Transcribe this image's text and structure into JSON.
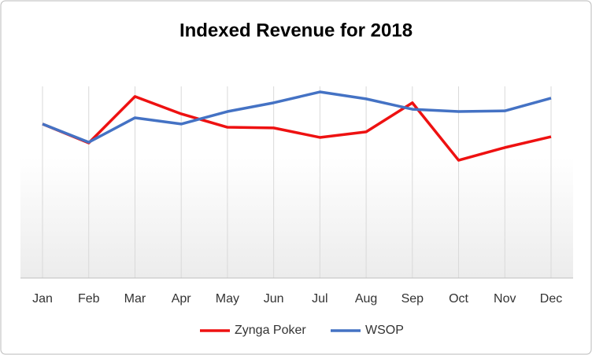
{
  "chart_data": {
    "type": "line",
    "title": "Indexed Revenue for 2018",
    "categories": [
      "Jan",
      "Feb",
      "Mar",
      "Apr",
      "May",
      "Jun",
      "Jul",
      "Aug",
      "Sep",
      "Oct",
      "Nov",
      "Dec"
    ],
    "series": [
      {
        "name": "Zynga Poker",
        "color": "#ee1111",
        "values": [
          66.7,
          58.5,
          78.6,
          71.1,
          65.3,
          65.0,
          60.9,
          63.3,
          75.9,
          51.0,
          56.5,
          61.2
        ]
      },
      {
        "name": "WSOP",
        "color": "#4472c4",
        "values": [
          66.7,
          58.8,
          69.4,
          66.7,
          72.1,
          75.9,
          80.6,
          77.6,
          73.1,
          72.1,
          72.4,
          77.9
        ]
      }
    ],
    "ylim": [
      0,
      100
    ],
    "legend": "bottom"
  }
}
